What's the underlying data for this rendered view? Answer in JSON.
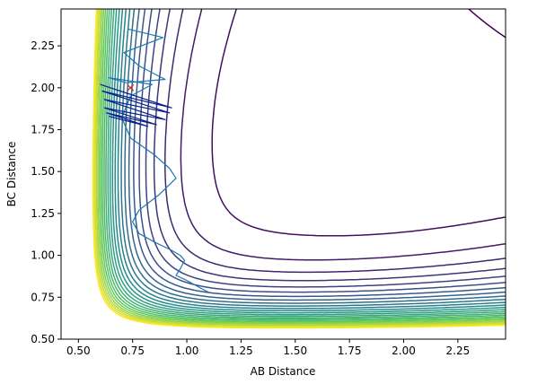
{
  "chart_data": {
    "type": "contour",
    "xlabel": "AB Distance",
    "ylabel": "BC Distance",
    "xlim": [
      0.42,
      2.47
    ],
    "ylim": [
      0.5,
      2.47
    ],
    "x_ticks": [
      0.5,
      0.75,
      1.0,
      1.25,
      1.5,
      1.75,
      2.0,
      2.25
    ],
    "x_tick_labels": [
      "0.50",
      "0.75",
      "1.00",
      "1.25",
      "1.50",
      "1.75",
      "2.00",
      "2.25"
    ],
    "y_ticks": [
      0.5,
      0.75,
      1.0,
      1.25,
      1.5,
      1.75,
      2.0,
      2.25
    ],
    "y_tick_labels": [
      "0.50",
      "0.75",
      "1.00",
      "1.25",
      "1.50",
      "1.75",
      "2.00",
      "2.25"
    ],
    "grid": false,
    "colormap": "viridis",
    "contour_levels": 26,
    "surface": "symmetric two-well potential energy surface with a saddle near (0.87, 1.40)",
    "start_marker": {
      "symbol": "x",
      "color": "#d62728",
      "x": 0.74,
      "y": 2.0
    },
    "trajectories": [
      {
        "color": "#1f77b4",
        "points": [
          [
            0.73,
            2.35
          ],
          [
            0.89,
            2.3
          ],
          [
            0.71,
            2.21
          ],
          [
            0.78,
            2.13
          ],
          [
            0.9,
            2.05
          ],
          [
            0.72,
            2.03
          ],
          [
            0.64,
            2.06
          ],
          [
            0.84,
            2.02
          ],
          [
            0.74,
            1.95
          ],
          [
            0.7,
            1.82
          ],
          [
            0.74,
            1.7
          ],
          [
            0.85,
            1.6
          ],
          [
            0.92,
            1.52
          ],
          [
            0.95,
            1.46
          ],
          [
            0.87,
            1.36
          ],
          [
            0.78,
            1.27
          ],
          [
            0.75,
            1.2
          ],
          [
            0.78,
            1.13
          ],
          [
            0.85,
            1.08
          ],
          [
            0.93,
            1.03
          ],
          [
            0.97,
            1.0
          ],
          [
            0.99,
            0.97
          ],
          [
            0.97,
            0.92
          ],
          [
            0.95,
            0.88
          ],
          [
            1.0,
            0.85
          ],
          [
            1.07,
            0.8
          ],
          [
            1.1,
            0.78
          ]
        ]
      },
      {
        "color": "#0a1e8c",
        "points": [
          [
            0.6,
            2.02
          ],
          [
            0.93,
            1.88
          ],
          [
            0.61,
            1.98
          ],
          [
            0.92,
            1.85
          ],
          [
            0.62,
            1.93
          ],
          [
            0.9,
            1.81
          ],
          [
            0.62,
            1.88
          ],
          [
            0.86,
            1.78
          ],
          [
            0.63,
            1.85
          ],
          [
            0.82,
            1.77
          ],
          [
            0.64,
            1.83
          ]
        ]
      }
    ]
  }
}
